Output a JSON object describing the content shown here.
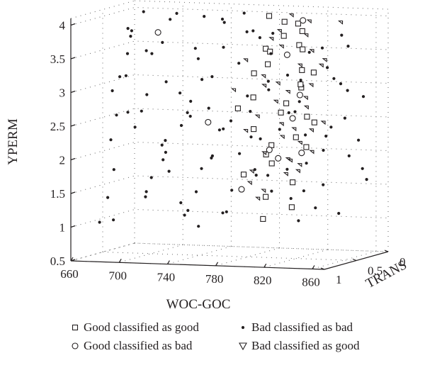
{
  "chart_data": {
    "type": "scatter",
    "projection": "3d",
    "xlabel": "WOC-GOC",
    "ylabel": "TRANS",
    "zlabel": "YPERM",
    "xlim": [
      660,
      870
    ],
    "ylim": [
      0,
      1
    ],
    "zlim": [
      0.5,
      4.1
    ],
    "xticks": [
      "660",
      "700",
      "740",
      "780",
      "820",
      "860"
    ],
    "yticks": [
      "0",
      "0.5",
      "1"
    ],
    "zticks": [
      "0.5",
      "1",
      "1.5",
      "2",
      "2.5",
      "3",
      "3.5",
      "4"
    ],
    "grid": true,
    "legend_position": "bottom",
    "series": [
      {
        "name": "Good classified as good",
        "marker": "square",
        "points": [
          [
            782,
            0.2,
            4.0
          ],
          [
            800,
            0.3,
            3.95
          ],
          [
            806,
            0.2,
            3.9
          ],
          [
            820,
            0.4,
            3.85
          ],
          [
            810,
            0.5,
            3.8
          ],
          [
            828,
            0.6,
            3.7
          ],
          [
            795,
            0.5,
            3.6
          ],
          [
            815,
            0.3,
            3.55
          ],
          [
            802,
            0.6,
            3.4
          ],
          [
            825,
            0.5,
            3.3
          ],
          [
            780,
            0.4,
            3.2
          ],
          [
            835,
            0.7,
            3.1
          ],
          [
            808,
            0.2,
            3.0
          ],
          [
            790,
            0.6,
            2.9
          ],
          [
            812,
            0.5,
            2.8
          ],
          [
            797,
            0.3,
            2.6
          ],
          [
            845,
            0.8,
            2.7
          ],
          [
            830,
            0.4,
            2.5
          ],
          [
            785,
            0.5,
            2.4
          ],
          [
            805,
            0.6,
            2.2
          ],
          [
            818,
            0.3,
            2.1
          ],
          [
            790,
            0.4,
            2.0
          ],
          [
            800,
            0.5,
            1.9
          ],
          [
            782,
            0.6,
            1.75
          ],
          [
            812,
            0.4,
            1.6
          ],
          [
            795,
            0.5,
            1.4
          ],
          [
            806,
            0.3,
            1.2
          ],
          [
            798,
            0.6,
            1.1
          ],
          [
            820,
            0.5,
            2.3
          ],
          [
            788,
            0.3,
            3.5
          ],
          [
            840,
            0.6,
            3.3
          ],
          [
            772,
            0.5,
            2.7
          ]
        ]
      },
      {
        "name": "Good classified as bad",
        "marker": "circle",
        "points": [
          [
            690,
            0.2,
            3.7
          ],
          [
            810,
            0.2,
            3.95
          ],
          [
            818,
            0.6,
            3.55
          ],
          [
            742,
            0.4,
            2.45
          ],
          [
            818,
            0.4,
            2.9
          ],
          [
            812,
            0.4,
            2.55
          ],
          [
            830,
            0.6,
            2.1
          ],
          [
            775,
            0.5,
            1.5
          ],
          [
            800,
            0.4,
            1.95
          ],
          [
            798,
            0.5,
            2.1
          ]
        ]
      },
      {
        "name": "Bad classified as bad",
        "marker": "dot",
        "points": [
          [
            662,
            0.1,
            3.6
          ],
          [
            670,
            0.3,
            3.4
          ],
          [
            668,
            0.5,
            2.9
          ],
          [
            665,
            0.2,
            2.5
          ],
          [
            672,
            0.6,
            2.2
          ],
          [
            664,
            0.4,
            1.7
          ],
          [
            675,
            0.1,
            1.3
          ],
          [
            668,
            0.7,
            1.0
          ],
          [
            678,
            0.2,
            4.0
          ],
          [
            684,
            0.5,
            3.8
          ],
          [
            690,
            0.8,
            3.2
          ],
          [
            686,
            0.3,
            2.8
          ],
          [
            692,
            0.6,
            2.4
          ],
          [
            688,
            0.1,
            2.0
          ],
          [
            695,
            0.4,
            1.6
          ],
          [
            690,
            0.9,
            1.1
          ],
          [
            700,
            0.2,
            3.9
          ],
          [
            706,
            0.6,
            3.5
          ],
          [
            702,
            0.3,
            3.0
          ],
          [
            708,
            0.8,
            2.7
          ],
          [
            704,
            0.1,
            2.3
          ],
          [
            710,
            0.5,
            1.9
          ],
          [
            706,
            0.7,
            1.4
          ],
          [
            712,
            0.2,
            1.0
          ],
          [
            716,
            0.4,
            4.05
          ],
          [
            720,
            0.7,
            3.7
          ],
          [
            718,
            0.1,
            3.3
          ],
          [
            724,
            0.5,
            2.9
          ],
          [
            722,
            0.3,
            2.5
          ],
          [
            728,
            0.8,
            2.1
          ],
          [
            726,
            0.2,
            1.7
          ],
          [
            730,
            0.6,
            1.3
          ],
          [
            734,
            0.4,
            0.9
          ],
          [
            738,
            0.1,
            3.9
          ],
          [
            742,
            0.6,
            3.6
          ],
          [
            740,
            0.3,
            3.1
          ],
          [
            746,
            0.8,
            2.7
          ],
          [
            744,
            0.2,
            2.3
          ],
          [
            750,
            0.5,
            1.95
          ],
          [
            748,
            0.7,
            1.5
          ],
          [
            752,
            0.3,
            1.1
          ],
          [
            756,
            0.1,
            4.0
          ],
          [
            760,
            0.5,
            3.6
          ],
          [
            758,
            0.8,
            3.2
          ],
          [
            764,
            0.2,
            2.8
          ],
          [
            762,
            0.6,
            2.4
          ],
          [
            768,
            0.4,
            2.0
          ],
          [
            766,
            0.1,
            1.6
          ],
          [
            770,
            0.7,
            1.2
          ],
          [
            774,
            0.3,
            3.8
          ],
          [
            778,
            0.6,
            3.4
          ],
          [
            776,
            0.1,
            3.0
          ],
          [
            782,
            0.8,
            2.6
          ],
          [
            780,
            0.3,
            2.2
          ],
          [
            786,
            0.5,
            1.8
          ],
          [
            784,
            0.2,
            1.4
          ],
          [
            790,
            0.7,
            3.9
          ],
          [
            794,
            0.4,
            3.5
          ],
          [
            792,
            0.1,
            3.1
          ],
          [
            798,
            0.8,
            2.75
          ],
          [
            796,
            0.3,
            2.35
          ],
          [
            802,
            0.6,
            1.75
          ],
          [
            800,
            0.2,
            1.3
          ],
          [
            806,
            0.8,
            3.85
          ],
          [
            810,
            0.1,
            3.45
          ],
          [
            808,
            0.7,
            3.05
          ],
          [
            814,
            0.4,
            2.65
          ],
          [
            812,
            0.2,
            2.25
          ],
          [
            818,
            0.6,
            1.85
          ],
          [
            816,
            0.3,
            1.45
          ],
          [
            822,
            0.9,
            3.95
          ],
          [
            826,
            0.2,
            3.55
          ],
          [
            824,
            0.5,
            3.15
          ],
          [
            830,
            0.8,
            2.75
          ],
          [
            828,
            0.1,
            2.35
          ],
          [
            834,
            0.6,
            1.95
          ],
          [
            832,
            0.3,
            1.55
          ],
          [
            838,
            0.8,
            1.15
          ],
          [
            842,
            0.2,
            3.75
          ],
          [
            846,
            0.5,
            3.35
          ],
          [
            844,
            0.9,
            2.95
          ],
          [
            850,
            0.3,
            2.55
          ],
          [
            848,
            0.6,
            2.15
          ],
          [
            854,
            0.1,
            1.75
          ],
          [
            852,
            0.8,
            1.35
          ],
          [
            858,
            0.4,
            3.65
          ],
          [
            862,
            0.7,
            3.25
          ],
          [
            860,
            0.2,
            2.85
          ],
          [
            866,
            0.9,
            2.45
          ],
          [
            864,
            0.5,
            2.05
          ],
          [
            868,
            0.3,
            1.65
          ],
          [
            866,
            0.7,
            1.25
          ],
          [
            674,
            0.4,
            3.1
          ],
          [
            682,
            0.7,
            2.6
          ],
          [
            696,
            0.2,
            2.1
          ],
          [
            712,
            0.8,
            3.6
          ],
          [
            732,
            0.2,
            2.6
          ],
          [
            754,
            0.9,
            2.9
          ],
          [
            772,
            0.9,
            2.1
          ],
          [
            788,
            0.9,
            1.6
          ],
          [
            804,
            0.9,
            2.4
          ],
          [
            836,
            0.1,
            3.0
          ],
          [
            856,
            0.2,
            2.2
          ],
          [
            868,
            0.6,
            3.05
          ],
          [
            720,
            0.3,
            1.1
          ],
          [
            744,
            0.5,
            4.05
          ],
          [
            766,
            0.6,
            4.0
          ],
          [
            702,
            0.9,
            3.95
          ],
          [
            680,
            0.8,
            1.4
          ],
          [
            736,
            0.9,
            1.85
          ]
        ]
      },
      {
        "name": "Bad classified as good",
        "marker": "triangle",
        "points": [
          [
            802,
            0.2,
            4.0
          ],
          [
            822,
            0.3,
            3.95
          ],
          [
            848,
            0.3,
            3.95
          ],
          [
            808,
            0.5,
            3.85
          ],
          [
            830,
            0.5,
            3.8
          ],
          [
            796,
            0.4,
            3.7
          ],
          [
            815,
            0.6,
            3.65
          ],
          [
            840,
            0.6,
            3.6
          ],
          [
            856,
            0.7,
            3.5
          ],
          [
            780,
            0.5,
            3.4
          ],
          [
            825,
            0.5,
            3.35
          ],
          [
            800,
            0.6,
            3.2
          ],
          [
            850,
            0.8,
            3.15
          ],
          [
            790,
            0.4,
            3.0
          ],
          [
            815,
            0.5,
            2.95
          ],
          [
            835,
            0.6,
            2.9
          ],
          [
            805,
            0.5,
            2.8
          ],
          [
            825,
            0.4,
            2.7
          ],
          [
            795,
            0.6,
            2.6
          ],
          [
            815,
            0.6,
            2.5
          ],
          [
            845,
            0.7,
            2.45
          ],
          [
            780,
            0.5,
            2.35
          ],
          [
            805,
            0.4,
            2.25
          ],
          [
            825,
            0.5,
            2.2
          ],
          [
            840,
            0.6,
            2.1
          ],
          [
            790,
            0.4,
            2.0
          ],
          [
            815,
            0.5,
            1.95
          ],
          [
            830,
            0.6,
            1.9
          ],
          [
            785,
            0.5,
            1.75
          ],
          [
            808,
            0.4,
            1.7
          ],
          [
            778,
            0.4,
            1.55
          ],
          [
            800,
            0.6,
            1.5
          ],
          [
            790,
            0.5,
            1.35
          ],
          [
            820,
            0.5,
            2.4
          ],
          [
            812,
            0.6,
            3.1
          ],
          [
            838,
            0.9,
            2.05
          ],
          [
            860,
            0.8,
            2.6
          ],
          [
            770,
            0.5,
            2.95
          ],
          [
            832,
            0.3,
            3.3
          ],
          [
            818,
            0.4,
            1.75
          ]
        ]
      }
    ]
  }
}
